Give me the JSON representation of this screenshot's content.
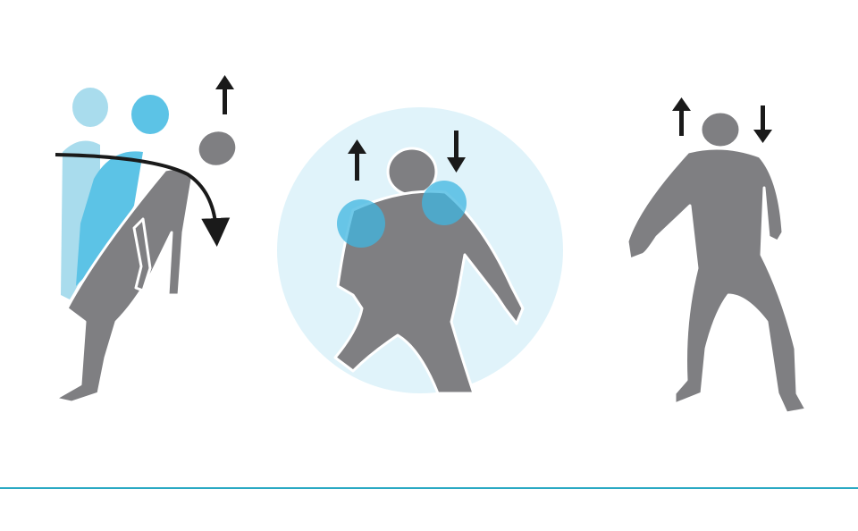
{
  "colors": {
    "background": "#ffffff",
    "figure_gray": "#7f7f82",
    "ghost_light_blue": "#a9dced",
    "ghost_blue": "#5cc3e6",
    "circle_fill": "#e0f3fa",
    "shoulder_blue": "#3fb5e0",
    "arrow_black": "#1a1a1a",
    "rule_teal": "#2aa9c3",
    "figure_outline": "#ffffff"
  },
  "panels": [
    {
      "name": "backward-bend",
      "icons": [
        "up-arrow-icon",
        "curved-arrow-icon"
      ]
    },
    {
      "name": "shoulder-tilt",
      "icons": [
        "up-arrow-icon",
        "down-arrow-icon"
      ]
    },
    {
      "name": "head-tilt",
      "icons": [
        "up-arrow-icon",
        "down-arrow-icon"
      ]
    }
  ]
}
